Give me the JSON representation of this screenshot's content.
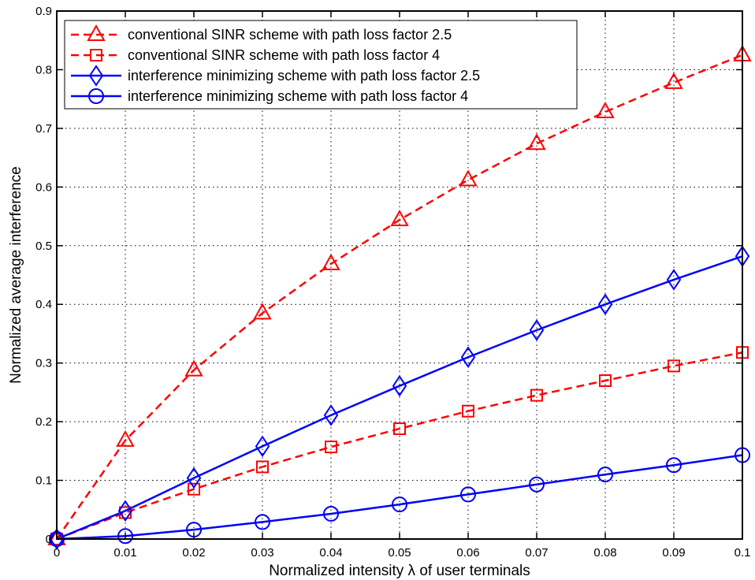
{
  "chart_data": {
    "type": "line",
    "title": "",
    "xlabel": "Normalized intensity λ of user terminals",
    "ylabel": "Normalized average interference",
    "xlim": [
      0,
      0.1
    ],
    "ylim": [
      0,
      0.9
    ],
    "x_ticks": [
      "0",
      "0.01",
      "0.02",
      "0.03",
      "0.04",
      "0.05",
      "0.06",
      "0.07",
      "0.08",
      "0.09",
      "0.1"
    ],
    "y_ticks": [
      "0",
      "0.1",
      "0.2",
      "0.3",
      "0.4",
      "0.5",
      "0.6",
      "0.7",
      "0.8",
      "0.9"
    ],
    "x_tick_values": [
      0,
      0.01,
      0.02,
      0.03,
      0.04,
      0.05,
      0.06,
      0.07,
      0.08,
      0.09,
      0.1
    ],
    "y_tick_values": [
      0,
      0.1,
      0.2,
      0.3,
      0.4,
      0.5,
      0.6,
      0.7,
      0.8,
      0.9
    ],
    "grid": true,
    "legend_position": "top-left",
    "x": [
      0,
      0.01,
      0.02,
      0.03,
      0.04,
      0.05,
      0.06,
      0.07,
      0.08,
      0.09,
      0.1
    ],
    "series": [
      {
        "name": "conventional SINR scheme with path loss factor 2.5",
        "color": "#ff0000",
        "line_style": "dashed",
        "marker": "triangle",
        "values": [
          0,
          0.168,
          0.288,
          0.385,
          0.469,
          0.544,
          0.612,
          0.674,
          0.728,
          0.778,
          0.825
        ]
      },
      {
        "name": "conventional SINR scheme with path loss factor 4",
        "color": "#ff0000",
        "line_style": "dashed",
        "marker": "square",
        "values": [
          0,
          0.045,
          0.085,
          0.123,
          0.157,
          0.188,
          0.218,
          0.245,
          0.27,
          0.295,
          0.318
        ]
      },
      {
        "name": "interference minimizing scheme with path loss factor 2.5",
        "color": "#0000ff",
        "line_style": "solid",
        "marker": "diamond",
        "values": [
          0,
          0.048,
          0.104,
          0.158,
          0.211,
          0.261,
          0.31,
          0.356,
          0.4,
          0.442,
          0.482
        ]
      },
      {
        "name": "interference minimizing scheme with path loss factor 4",
        "color": "#0000ff",
        "line_style": "solid",
        "marker": "circle",
        "values": [
          0,
          0.005,
          0.016,
          0.029,
          0.043,
          0.059,
          0.076,
          0.093,
          0.11,
          0.126,
          0.143
        ]
      }
    ]
  }
}
